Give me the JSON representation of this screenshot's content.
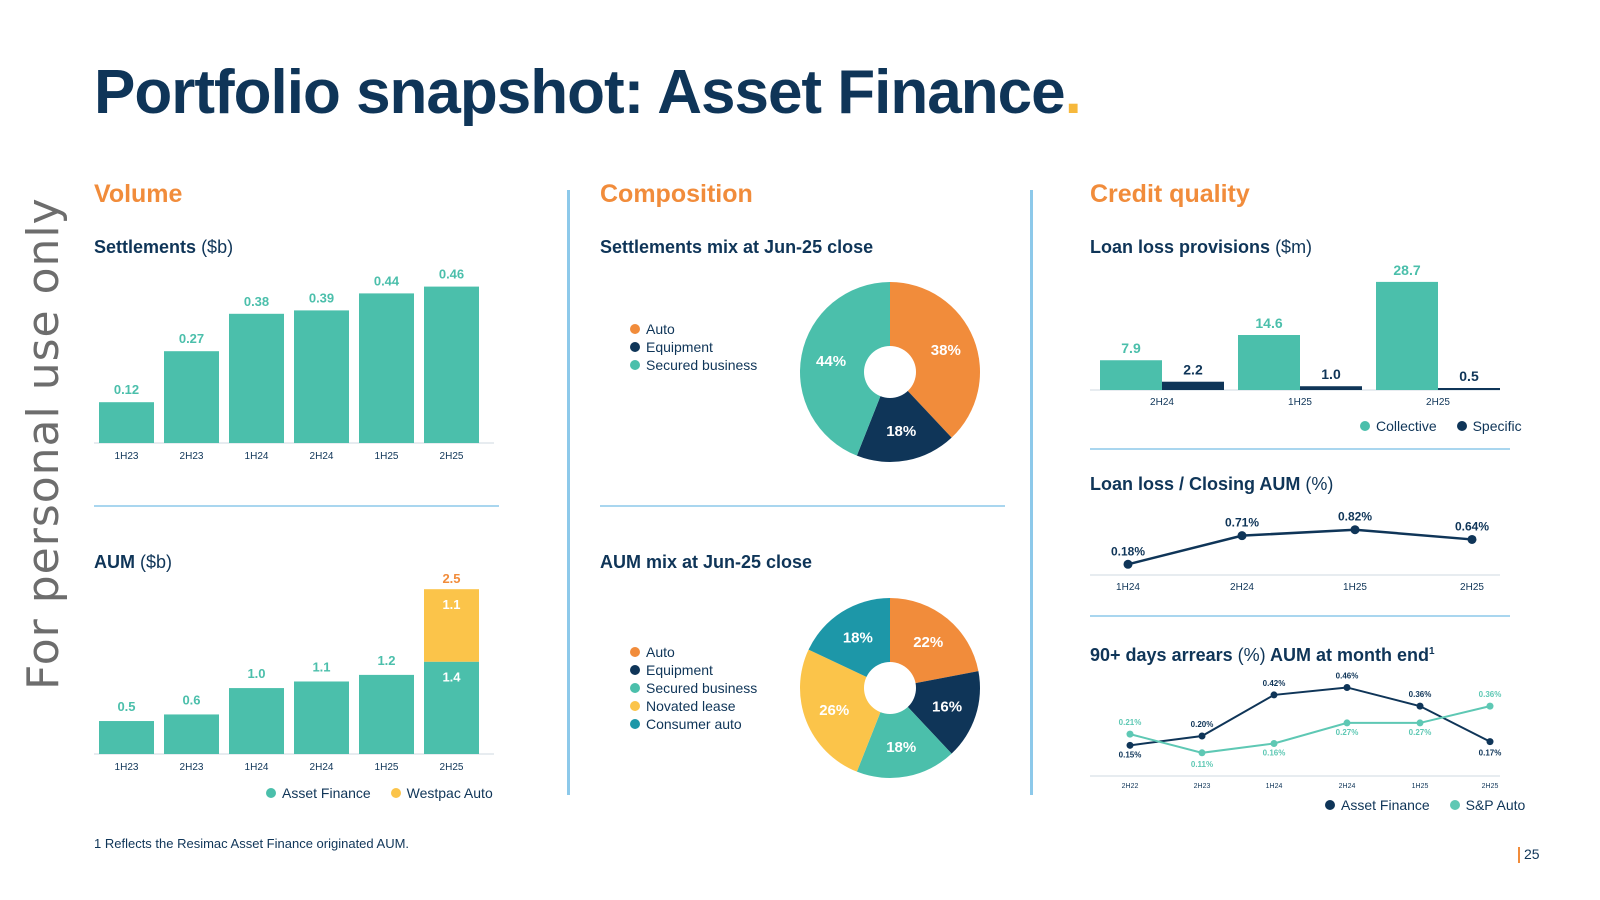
{
  "title": "Portfolio snapshot: Asset Finance",
  "title_dot": ".",
  "watermark": "For personal use only",
  "colors": {
    "navy": "#0f3558",
    "teal": "#4bbfab",
    "orange": "#f18c3b",
    "yellow": "#fbc44a",
    "cyan": "#1d97a8",
    "light_teal": "#5ec8b4"
  },
  "sections": {
    "volume": "Volume",
    "composition": "Composition",
    "credit_quality": "Credit quality"
  },
  "settlements": {
    "title": "Settlements",
    "unit": "($b)"
  },
  "aum": {
    "title": "AUM",
    "unit": "($b)"
  },
  "settlements_mix": {
    "title": "Settlements mix at Jun-25 close"
  },
  "aum_mix": {
    "title": "AUM mix at Jun-25 close"
  },
  "loan_loss_provisions": {
    "title": "Loan loss provisions",
    "unit": "($m)"
  },
  "loan_loss_ratio": {
    "title": "Loan loss / Closing AUM",
    "unit": "(%)"
  },
  "arrears": {
    "title": "90+ days arrears",
    "unit": "(%)",
    "suffix": "AUM at month end",
    "sup": "1"
  },
  "legends": {
    "aum": [
      "Asset Finance",
      "Westpac Auto"
    ],
    "settlements_mix": [
      "Auto",
      "Equipment",
      "Secured business"
    ],
    "aum_mix": [
      "Auto",
      "Equipment",
      "Secured business",
      "Novated lease",
      "Consumer auto"
    ],
    "provisions": [
      "Collective",
      "Specific"
    ],
    "arrears": [
      "Asset Finance",
      "S&P Auto"
    ]
  },
  "footnote": "1   Reflects the Resimac Asset Finance originated AUM.",
  "page_number": "25",
  "chart_data": [
    {
      "id": "settlements",
      "type": "bar",
      "title": "Settlements ($b)",
      "categories": [
        "1H23",
        "2H23",
        "1H24",
        "2H24",
        "1H25",
        "2H25"
      ],
      "values": [
        0.12,
        0.27,
        0.38,
        0.39,
        0.44,
        0.46
      ],
      "labels": [
        "0.12",
        "0.27",
        "0.38",
        "0.39",
        "0.44",
        "0.46"
      ],
      "ylim": [
        0,
        0.5
      ]
    },
    {
      "id": "aum",
      "type": "bar",
      "stacked": true,
      "title": "AUM ($b)",
      "categories": [
        "1H23",
        "2H23",
        "1H24",
        "2H24",
        "1H25",
        "2H25"
      ],
      "series": [
        {
          "name": "Asset Finance",
          "values": [
            0.5,
            0.6,
            1.0,
            1.1,
            1.2,
            1.4
          ],
          "labels": [
            "0.5",
            "0.6",
            "1.0",
            "1.1",
            "1.2",
            "1.4"
          ]
        },
        {
          "name": "Westpac Auto",
          "values": [
            0,
            0,
            0,
            0,
            0,
            1.1
          ],
          "labels": [
            "",
            "",
            "",
            "",
            "",
            "1.1"
          ]
        }
      ],
      "totals": [
        "",
        "",
        "",
        "",
        "",
        "2.5"
      ],
      "ylim": [
        0,
        2.7
      ]
    },
    {
      "id": "settlements_mix",
      "type": "pie",
      "title": "Settlements mix at Jun-25 close",
      "donut": true,
      "slices": [
        {
          "name": "Auto",
          "value": 38,
          "label": "38%"
        },
        {
          "name": "Equipment",
          "value": 18,
          "label": "18%"
        },
        {
          "name": "Secured business",
          "value": 44,
          "label": "44%"
        }
      ]
    },
    {
      "id": "aum_mix",
      "type": "pie",
      "title": "AUM mix at Jun-25 close",
      "donut": true,
      "slices": [
        {
          "name": "Auto",
          "value": 22,
          "label": "22%"
        },
        {
          "name": "Equipment",
          "value": 16,
          "label": "16%"
        },
        {
          "name": "Secured business",
          "value": 18,
          "label": "18%"
        },
        {
          "name": "Novated lease",
          "value": 26,
          "label": "26%"
        },
        {
          "name": "Consumer auto",
          "value": 18,
          "label": "18%"
        }
      ]
    },
    {
      "id": "loan_loss_provisions",
      "type": "bar",
      "title": "Loan loss provisions ($m)",
      "categories": [
        "2H24",
        "1H25",
        "2H25"
      ],
      "series": [
        {
          "name": "Collective",
          "values": [
            7.9,
            14.6,
            28.7
          ],
          "labels": [
            "7.9",
            "14.6",
            "28.7"
          ]
        },
        {
          "name": "Specific",
          "values": [
            2.2,
            1.0,
            0.5
          ],
          "labels": [
            "2.2",
            "1.0",
            "0.5"
          ]
        }
      ],
      "ylim": [
        0,
        30
      ]
    },
    {
      "id": "loan_loss_ratio",
      "type": "line",
      "title": "Loan loss / Closing AUM (%)",
      "x": [
        "1H24",
        "2H24",
        "1H25",
        "2H25"
      ],
      "values": [
        0.18,
        0.71,
        0.82,
        0.64
      ],
      "labels": [
        "0.18%",
        "0.71%",
        "0.82%",
        "0.64%"
      ],
      "ylim": [
        0,
        1
      ]
    },
    {
      "id": "arrears",
      "type": "line",
      "title": "90+ days arrears (%) AUM at month end",
      "x_ticks": [
        "2H22",
        "2H23",
        "1H24",
        "2H24",
        "1H25",
        "2H25"
      ],
      "series": [
        {
          "name": "Asset Finance",
          "values": [
            0.15,
            0.2,
            0.42,
            0.46,
            0.36,
            0.17
          ],
          "labels": [
            "0.15%",
            "0.20%",
            "0.42%",
            "0.46%",
            "0.36%",
            "0.17%"
          ]
        },
        {
          "name": "S&P Auto",
          "values": [
            0.21,
            0.11,
            0.16,
            0.27,
            0.27,
            0.36
          ],
          "labels": [
            "0.21%",
            "0.11%",
            "0.16%",
            "0.27%",
            "0.27%",
            "0.36%"
          ]
        }
      ],
      "ylim": [
        0.05,
        0.5
      ]
    }
  ]
}
